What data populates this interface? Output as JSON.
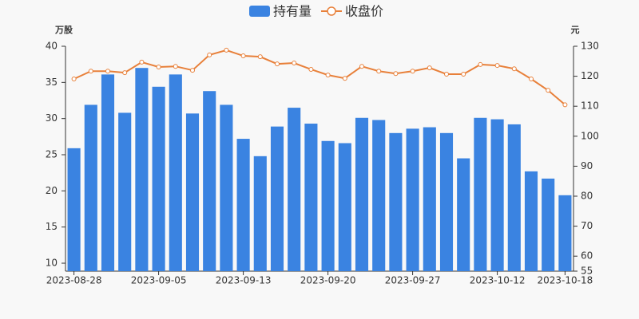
{
  "chart_data": {
    "type": "bar-line",
    "legend": "top",
    "y_unit": "万股",
    "y2_unit": "元",
    "categories": [
      "2023-08-28",
      null,
      null,
      null,
      null,
      "2023-09-05",
      null,
      null,
      null,
      null,
      "2023-09-13",
      null,
      null,
      null,
      null,
      "2023-09-20",
      null,
      null,
      null,
      null,
      "2023-09-27",
      null,
      null,
      null,
      null,
      "2023-10-12",
      null,
      null,
      null,
      "2023-10-18"
    ],
    "ylim": [
      8.9,
      40
    ],
    "yticks": [
      10,
      15,
      20,
      25,
      30,
      35,
      40
    ],
    "y2lim": [
      55,
      130
    ],
    "y2ticks": [
      55,
      60,
      70,
      80,
      90,
      100,
      110,
      120,
      130
    ],
    "series": [
      {
        "name": "持有量",
        "type": "bar",
        "color": "#3a83e1",
        "values": [
          25.9,
          31.9,
          36.1,
          30.8,
          37.0,
          34.4,
          36.1,
          30.7,
          33.8,
          31.9,
          27.2,
          24.8,
          28.9,
          31.5,
          29.3,
          26.9,
          26.6,
          30.1,
          29.8,
          28.0,
          28.6,
          28.8,
          28.0,
          24.5,
          30.1,
          29.9,
          29.2,
          22.7,
          21.7,
          19.4
        ]
      },
      {
        "name": "收盘价",
        "type": "line",
        "axis": "y2",
        "color": "#e8803a",
        "values": [
          119.1,
          121.7,
          121.7,
          121.2,
          124.7,
          123.1,
          123.3,
          122.0,
          127.1,
          128.7,
          126.8,
          126.5,
          124.1,
          124.4,
          122.3,
          120.4,
          119.3,
          123.3,
          121.7,
          120.9,
          121.7,
          122.8,
          120.7,
          120.7,
          123.9,
          123.6,
          122.5,
          119.1,
          115.3,
          110.5
        ]
      }
    ]
  }
}
